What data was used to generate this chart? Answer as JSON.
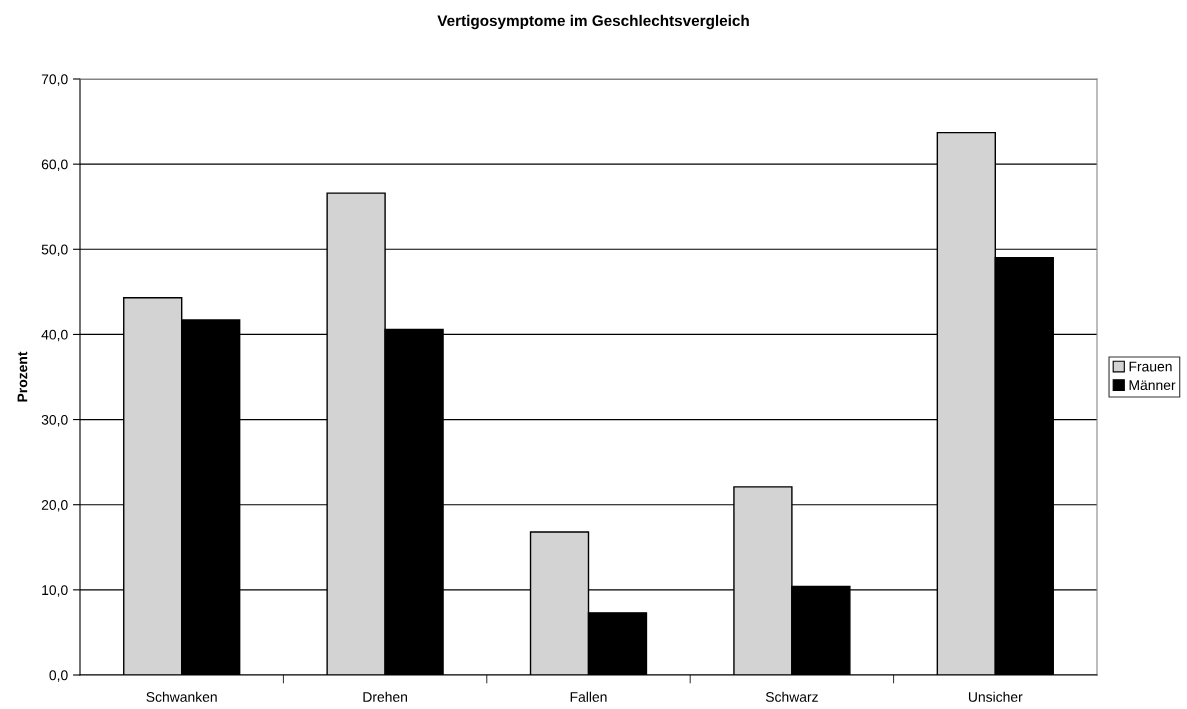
{
  "chart_data": {
    "type": "bar",
    "title": "Vertigosymptome im Geschlechtsvergleich",
    "ylabel": "Prozent",
    "categories": [
      "Schwanken",
      "Drehen",
      "Fallen",
      "Schwarz",
      "Unsicher"
    ],
    "series": [
      {
        "name": "Frauen",
        "color": "#d3d3d3",
        "values": [
          44.3,
          56.6,
          16.8,
          22.1,
          63.7
        ]
      },
      {
        "name": "Männer",
        "color": "#000000",
        "values": [
          41.7,
          40.6,
          7.3,
          10.4,
          49.0
        ]
      }
    ],
    "ylim": [
      0,
      70
    ],
    "yticks": [
      {
        "value": 0,
        "label": "0,0"
      },
      {
        "value": 10,
        "label": "10,0"
      },
      {
        "value": 20,
        "label": "20,0"
      },
      {
        "value": 30,
        "label": "30,0"
      },
      {
        "value": 40,
        "label": "40,0"
      },
      {
        "value": 50,
        "label": "50,0"
      },
      {
        "value": 60,
        "label": "60,0"
      },
      {
        "value": 70,
        "label": "70,0"
      }
    ],
    "grid": "y",
    "legend": "right"
  }
}
